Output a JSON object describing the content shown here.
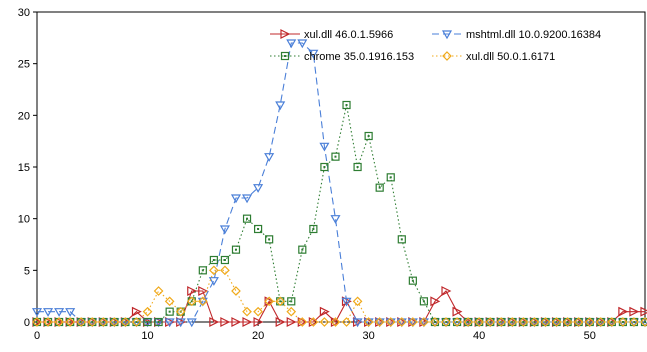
{
  "chart_data": {
    "type": "line",
    "title": "",
    "xlabel": "",
    "ylabel": "",
    "xlim": [
      0,
      55
    ],
    "ylim": [
      0,
      30
    ],
    "xticks": [
      0,
      10,
      20,
      30,
      40,
      50
    ],
    "yticks": [
      0,
      5,
      10,
      15,
      20,
      25,
      30
    ],
    "grid": false,
    "legend": "top-right",
    "series": [
      {
        "name": "xul.dll 46.0.1.5966",
        "color": "#c0282b",
        "marker": "triangle-right",
        "dash": "solid",
        "x": [
          0,
          1,
          2,
          3,
          4,
          5,
          6,
          7,
          8,
          9,
          10,
          11,
          12,
          13,
          14,
          15,
          16,
          17,
          18,
          19,
          20,
          21,
          22,
          23,
          24,
          25,
          26,
          27,
          28,
          29,
          30,
          31,
          32,
          33,
          34,
          35,
          36,
          37,
          38,
          39,
          40,
          41,
          42,
          43,
          44,
          45,
          46,
          47,
          48,
          49,
          50,
          51,
          52,
          53,
          54,
          55
        ],
        "y": [
          0,
          0,
          0,
          0,
          0,
          0,
          0,
          0,
          0,
          1,
          0,
          0,
          0,
          0,
          3,
          3,
          0,
          0,
          0,
          0,
          0,
          2,
          0,
          0,
          0,
          0,
          1,
          0,
          2,
          0,
          0,
          0,
          0,
          0,
          0,
          0,
          2,
          3,
          1,
          0,
          0,
          0,
          0,
          0,
          0,
          0,
          0,
          0,
          0,
          0,
          0,
          0,
          0,
          1,
          1,
          1
        ]
      },
      {
        "name": "mshtml.dll 10.0.9200.16384",
        "color": "#4a7fd8",
        "marker": "triangle-down",
        "dash": "dashed",
        "x": [
          0,
          1,
          2,
          3,
          4,
          5,
          6,
          7,
          8,
          9,
          10,
          11,
          12,
          13,
          14,
          15,
          16,
          17,
          18,
          19,
          20,
          21,
          22,
          23,
          24,
          25,
          26,
          27,
          28,
          29,
          30,
          31,
          32,
          33,
          34,
          35,
          36,
          37,
          38,
          39,
          40,
          41,
          42,
          43,
          44,
          45,
          46,
          47,
          48,
          49,
          50,
          51,
          52,
          53,
          54,
          55
        ],
        "y": [
          1,
          1,
          1,
          1,
          0,
          0,
          0,
          0,
          0,
          0,
          0,
          0,
          0,
          0,
          0,
          2,
          4,
          9,
          12,
          12,
          13,
          16,
          21,
          27,
          27,
          26,
          17,
          10,
          2,
          0,
          0,
          0,
          0,
          0,
          0,
          0,
          0,
          0,
          0,
          0,
          0,
          0,
          0,
          0,
          0,
          0,
          0,
          0,
          0,
          0,
          0,
          0,
          0,
          0,
          0,
          0
        ]
      },
      {
        "name": "chrome 35.0.1916.153",
        "color": "#2e7d32",
        "marker": "square",
        "dash": "dotted",
        "x": [
          0,
          1,
          2,
          3,
          4,
          5,
          6,
          7,
          8,
          9,
          10,
          11,
          12,
          13,
          14,
          15,
          16,
          17,
          18,
          19,
          20,
          21,
          22,
          23,
          24,
          25,
          26,
          27,
          28,
          29,
          30,
          31,
          32,
          33,
          34,
          35,
          36,
          37,
          38,
          39,
          40,
          41,
          42,
          43,
          44,
          45,
          46,
          47,
          48,
          49,
          50,
          51,
          52,
          53,
          54,
          55
        ],
        "y": [
          0,
          0,
          0,
          0,
          0,
          0,
          0,
          0,
          0,
          0,
          0,
          0,
          1,
          1,
          2,
          5,
          6,
          6,
          7,
          10,
          9,
          8,
          2,
          2,
          7,
          9,
          15,
          16,
          21,
          15,
          18,
          13,
          14,
          8,
          4,
          2,
          0,
          0,
          0,
          0,
          0,
          0,
          0,
          0,
          0,
          0,
          0,
          0,
          0,
          0,
          0,
          0,
          0,
          0,
          0,
          0
        ]
      },
      {
        "name": "xul.dll 50.0.1.6171",
        "color": "#f0a91a",
        "marker": "diamond",
        "dash": "dotted",
        "x": [
          0,
          1,
          2,
          3,
          4,
          5,
          6,
          7,
          8,
          9,
          10,
          11,
          12,
          13,
          14,
          15,
          16,
          17,
          18,
          19,
          20,
          21,
          22,
          23,
          24,
          25,
          26,
          27,
          28,
          29,
          30,
          31,
          32,
          33,
          34,
          35,
          36,
          37,
          38,
          39,
          40,
          41,
          42,
          43,
          44,
          45,
          46,
          47,
          48,
          49,
          50,
          51,
          52,
          53,
          54,
          55
        ],
        "y": [
          0,
          0,
          0,
          0,
          0,
          0,
          0,
          0,
          0,
          0,
          1,
          3,
          2,
          1,
          2,
          2,
          5,
          5,
          3,
          1,
          1,
          2,
          2,
          1,
          0,
          0,
          0,
          0,
          0,
          2,
          0,
          0,
          0,
          0,
          0,
          0,
          0,
          0,
          0,
          0,
          0,
          0,
          0,
          0,
          0,
          0,
          0,
          0,
          0,
          0,
          0,
          0,
          0,
          0,
          0,
          0
        ]
      }
    ]
  }
}
